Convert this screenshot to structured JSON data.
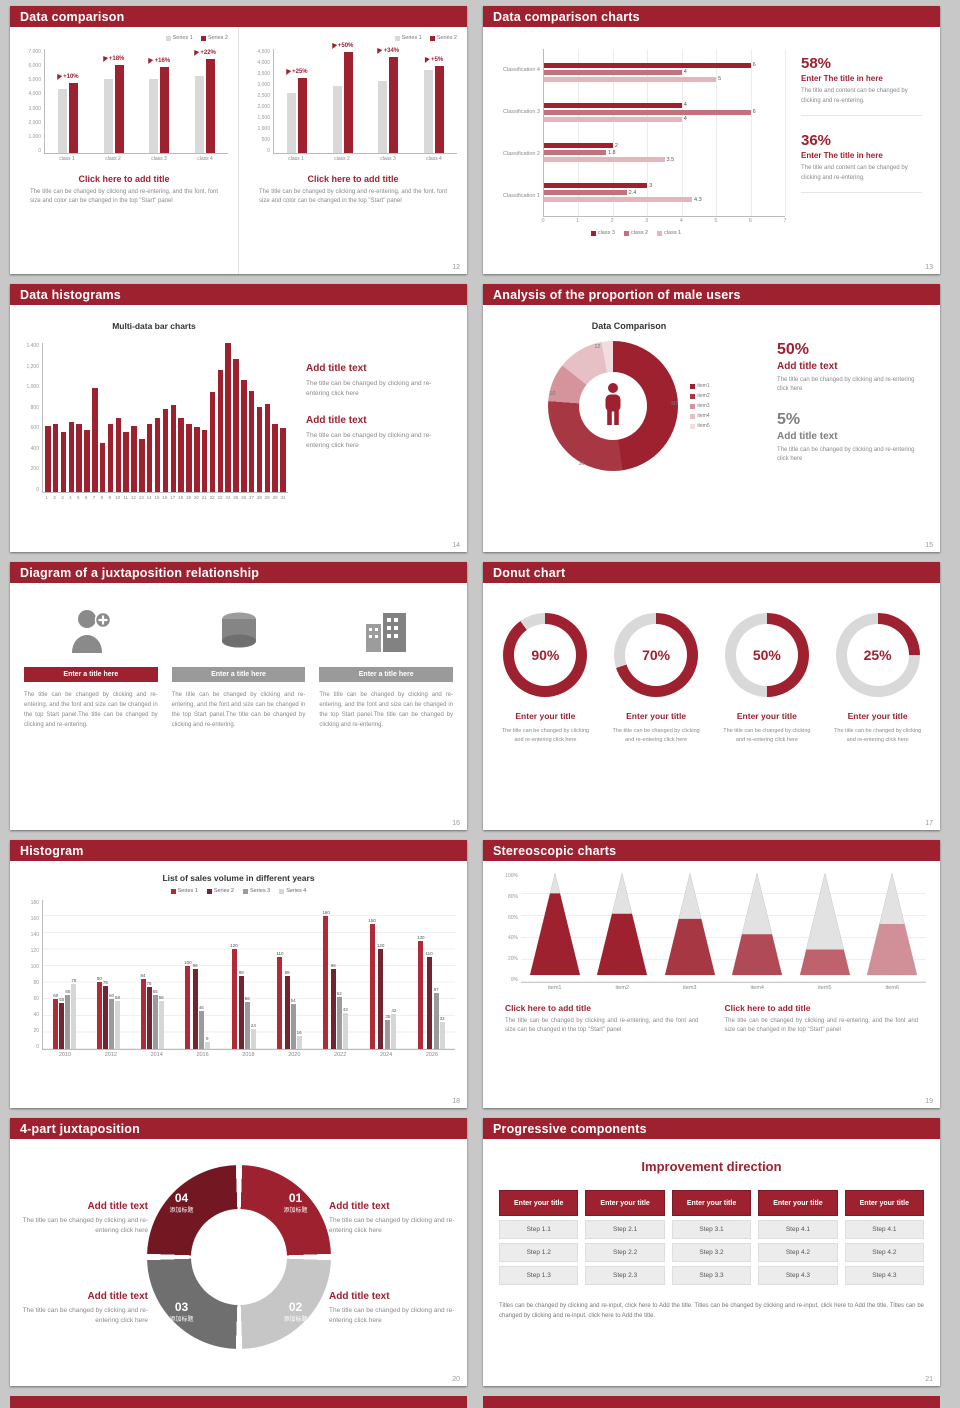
{
  "page": {
    "background": "#c8c8c8",
    "accent": "#9e2130"
  },
  "slides": [
    {
      "title": "Data comparison",
      "page_num": "12",
      "charts": [
        {
          "type": "grouped-bar",
          "categories": [
            "class 1",
            "class 2",
            "class 3",
            "class 4"
          ],
          "badges": [
            "+10%",
            "+18%",
            "+16%",
            "+22%"
          ],
          "series": [
            {
              "name": "Series 1",
              "color": "#d9d9d9",
              "values": [
                4300,
                5000,
                5000,
                5200
              ]
            },
            {
              "name": "Series 2",
              "color": "#9e2130",
              "values": [
                4730,
                5900,
                5800,
                6350
              ]
            }
          ],
          "y_ticks": [
            "7,000",
            "6,000",
            "5,000",
            "4,000",
            "3,000",
            "2,000",
            "1,000",
            "0"
          ],
          "ymax": 7000
        },
        {
          "type": "grouped-bar",
          "categories": [
            "class 1",
            "class 2",
            "class 3",
            "class 4"
          ],
          "badges": [
            "+25%",
            "+50%",
            "+34%",
            "+5%"
          ],
          "series": [
            {
              "name": "Series 1",
              "color": "#d9d9d9",
              "values": [
                2600,
                2900,
                3100,
                3600
              ]
            },
            {
              "name": "Series 2",
              "color": "#9e2130",
              "values": [
                3250,
                4350,
                4150,
                3780
              ]
            }
          ],
          "y_ticks": [
            "4,500",
            "4,000",
            "3,500",
            "3,000",
            "2,500",
            "2,000",
            "1,500",
            "1,000",
            "500",
            "0"
          ],
          "ymax": 4500
        }
      ],
      "blocks": [
        {
          "title": "Click here to add title",
          "text": "The title can be changed by clicking and re-entering, and the font, font size and color can be changed in the top \"Start\" panel"
        },
        {
          "title": "Click here to add title",
          "text": "The title can be changed by clicking and re-entering, and the font, font size and color can be changed in the top \"Start\" panel"
        }
      ]
    },
    {
      "title": "Data comparison charts",
      "page_num": "13",
      "chart": {
        "type": "hbar",
        "categories": [
          "Classification 4",
          "Classification 3",
          "Classification 2",
          "Classification 1"
        ],
        "series_names": [
          "class 3",
          "class 2",
          "class 1"
        ],
        "series_colors": [
          "#9e2130",
          "#c4707d",
          "#e3b6bc"
        ],
        "values": [
          [
            6,
            4,
            5
          ],
          [
            4,
            6,
            4
          ],
          [
            2,
            1.8,
            3.5
          ],
          [
            3,
            2.4,
            4.3
          ]
        ],
        "x_ticks": [
          "0",
          "1",
          "2",
          "3",
          "4",
          "5",
          "6",
          "7"
        ],
        "xmax": 7
      },
      "blocks": [
        {
          "pct": "58%",
          "title": "Enter The title in here",
          "text": "The title and content can be changed by clicking and re-entering."
        },
        {
          "pct": "36%",
          "title": "Enter The title in here",
          "text": "The title and content can be changed by clicking and re-entering."
        }
      ]
    },
    {
      "title": "Data histograms",
      "page_num": "14",
      "chart": {
        "type": "bar",
        "title": "Multi-data bar charts",
        "values": [
          620,
          640,
          560,
          660,
          640,
          580,
          980,
          460,
          640,
          700,
          560,
          620,
          500,
          640,
          700,
          780,
          820,
          700,
          640,
          610,
          580,
          940,
          1150,
          1400,
          1250,
          1050,
          950,
          800,
          830,
          640,
          600
        ],
        "x_labels": [
          "1",
          "2",
          "3",
          "4",
          "5",
          "6",
          "7",
          "8",
          "9",
          "10",
          "11",
          "12",
          "13",
          "14",
          "15",
          "16",
          "17",
          "18",
          "19",
          "20",
          "21",
          "22",
          "23",
          "24",
          "25",
          "26",
          "27",
          "28",
          "29",
          "30",
          "31"
        ],
        "y_ticks": [
          "1,400",
          "1,200",
          "1,000",
          "800",
          "600",
          "400",
          "200",
          "0"
        ],
        "ymax": 1400,
        "color": "#9e2130"
      },
      "blocks": [
        {
          "title": "Add title text",
          "text": "The title can be changed by clicking and re-entering click here"
        },
        {
          "title": "Add title text",
          "text": "The title can be changed by clicking and re-entering click here"
        }
      ]
    },
    {
      "title": "Analysis of the proportion of male users",
      "page_num": "15",
      "chart": {
        "type": "donut",
        "title": "Data Comparison",
        "segments": [
          {
            "label": "item1",
            "value": 50,
            "color": "#9e2130"
          },
          {
            "label": "item2",
            "value": 30,
            "color": "#a83744"
          },
          {
            "label": "item3",
            "value": 10,
            "color": "#d5949c"
          },
          {
            "label": "item4",
            "value": 12,
            "color": "#e7c0c5"
          },
          {
            "label": "item5",
            "value": 3,
            "color": "#f2dcdf"
          }
        ],
        "point_labels": [
          "50",
          "30",
          "10",
          "12"
        ]
      },
      "blocks": [
        {
          "pct": "50%",
          "title": "Add title text",
          "text": "The title can be changed by clicking and re-entering click here",
          "tone": "red"
        },
        {
          "pct": "5%",
          "title": "Add title text",
          "text": "The title can be changed by clicking and re-entering click here",
          "tone": "gray"
        }
      ]
    },
    {
      "title": "Diagram of a juxtaposition relationship",
      "page_num": "16",
      "columns": [
        {
          "icon": "nurse-icon",
          "title": "Enter a title here",
          "highlight": true,
          "text": "The title can be changed by clicking and re-entering, and the font and size can be changed in the top Start panel.The title can be changed by clicking and re-entering."
        },
        {
          "icon": "database-icon",
          "title": "Enter a title here",
          "highlight": false,
          "text": "The title can be changed by clicking and re-entering, and the font and size can be changed in the top Start panel.The title can be changed by clicking and re-entering."
        },
        {
          "icon": "building-icon",
          "title": "Enter a title here",
          "highlight": false,
          "text": "The title can be changed by clicking and re-entering, and the font and size can be changed in the top Start panel.The title can be changed by clicking and re-entering."
        }
      ]
    },
    {
      "title": "Donut chart",
      "page_num": "17",
      "donuts": [
        {
          "pct": 90,
          "label": "90%",
          "title": "Enter your title",
          "text": "The title can be changed by clicking and re-entering click here"
        },
        {
          "pct": 70,
          "label": "70%",
          "title": "Enter your title",
          "text": "The title can be changed by clicking and re-entering click here"
        },
        {
          "pct": 50,
          "label": "50%",
          "title": "Enter your title",
          "text": "The title can be changed by clicking and re-entering click here"
        },
        {
          "pct": 25,
          "label": "25%",
          "title": "Enter your title",
          "text": "The title can be changed by clicking and re-entering click here"
        }
      ]
    },
    {
      "title": "Histogram",
      "page_num": "18",
      "chart": {
        "type": "grouped-bar-labeled",
        "title": "List of sales volume in different years",
        "categories": [
          "2010",
          "2012",
          "2014",
          "2016",
          "2018",
          "2020",
          "2022",
          "2024",
          "2026"
        ],
        "series": [
          {
            "name": "Series 1",
            "color": "#b02a37",
            "values": [
              60,
              80,
              84,
              100,
              120,
              110,
              160,
              150,
              130
            ]
          },
          {
            "name": "Series 2",
            "color": "#722530",
            "values": [
              55,
              76,
              75,
              96,
              88,
              88,
              96,
              120,
              110
            ]
          },
          {
            "name": "Series 3",
            "color": "#9b9b9b",
            "values": [
              65,
              60,
              65,
              46,
              56,
              54,
              62,
              35,
              67
            ]
          },
          {
            "name": "Series 4",
            "color": "#d6d6d6",
            "values": [
              78,
              58,
              58,
              9,
              24,
              16,
              43,
              42,
              32
            ]
          }
        ],
        "y_ticks": [
          "180",
          "160",
          "140",
          "120",
          "100",
          "80",
          "60",
          "40",
          "20",
          "0"
        ],
        "ymax": 180
      }
    },
    {
      "title": "Stereoscopic charts",
      "page_num": "19",
      "chart": {
        "type": "cone",
        "categories": [
          "item1",
          "item2",
          "item3",
          "item4",
          "item5",
          "item6"
        ],
        "values": [
          80,
          60,
          55,
          40,
          25,
          50
        ],
        "colors": [
          "#9e2130",
          "#9e2130",
          "#a83744",
          "#b04a56",
          "#c0626d",
          "#d18f98"
        ],
        "y_ticks": [
          "100%",
          "80%",
          "60%",
          "40%",
          "20%",
          "0%"
        ]
      },
      "blocks": [
        {
          "title": "Click here to add title",
          "text": "The title can be changed by clicking and re-entering, and the font and size can be changed in the top \"Start\" panel"
        },
        {
          "title": "Click here to add title",
          "text": "The title can be changed by clicking and re-entering, and the font and size can be changed in the top \"Start\" panel"
        }
      ]
    },
    {
      "title": "4-part juxtaposition",
      "page_num": "20",
      "ring": [
        {
          "num": "01",
          "label": "添加标题",
          "color": "#9e2130"
        },
        {
          "num": "02",
          "label": "添加标题",
          "color": "#c6c6c6"
        },
        {
          "num": "03",
          "label": "添加标题",
          "color": "#6f6f6f"
        },
        {
          "num": "04",
          "label": "添加标题",
          "color": "#731722"
        }
      ],
      "blocks": [
        {
          "title": "Add title text",
          "text": "The title can be changed by clicking and re-entering click here"
        },
        {
          "title": "Add title text",
          "text": "The title can be changed by clicking and re-entering click here"
        },
        {
          "title": "Add title text",
          "text": "The title can be changed by clicking and re-entering click here"
        },
        {
          "title": "Add title text",
          "text": "The title can be changed by clicking and re-entering click here"
        }
      ]
    },
    {
      "title": "Progressive components",
      "page_num": "21",
      "heading": "Improvement direction",
      "columns": [
        {
          "button": "Enter your title",
          "steps": [
            "Step 1.1",
            "Step 1.2",
            "Step 1.3"
          ]
        },
        {
          "button": "Enter your title",
          "steps": [
            "Step 2.1",
            "Step 2.2",
            "Step 2.3"
          ]
        },
        {
          "button": "Enter your title",
          "steps": [
            "Step 3.1",
            "Step 3.2",
            "Step 3.3"
          ]
        },
        {
          "button": "Enter your title",
          "steps": [
            "Step 4.1",
            "Step 4.2",
            "Step 4.3"
          ]
        },
        {
          "button": "Enter your title",
          "steps": [
            "Step 4.1",
            "Step 4.2",
            "Step 4.3"
          ]
        }
      ],
      "caption": "Titles can be changed by clicking and re-input, click here to Add the title. Titles can be changed by clicking and re-input, click here to Add the title. Titles can be changed by clicking and re-input, click here to Add the title."
    }
  ]
}
